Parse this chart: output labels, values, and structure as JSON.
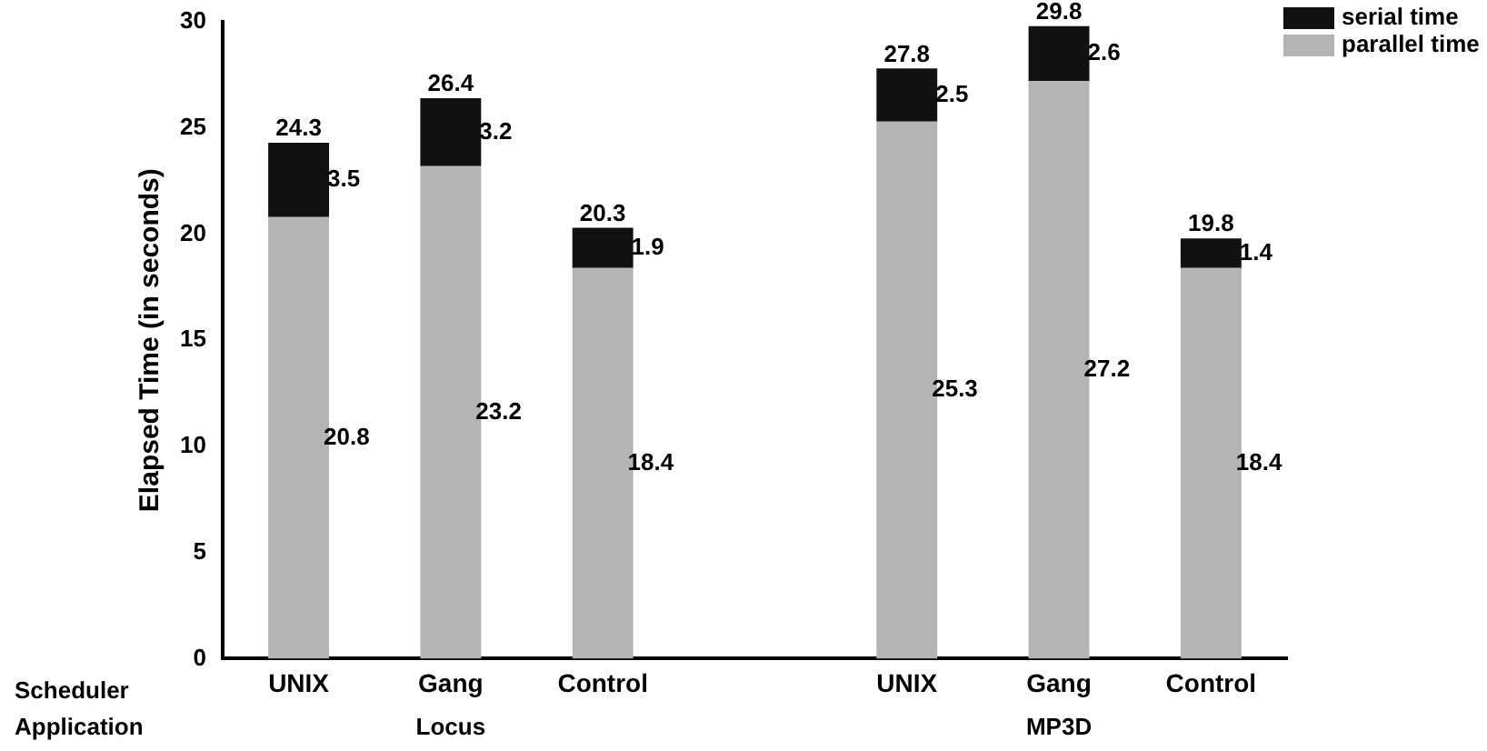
{
  "chart_data": {
    "type": "bar",
    "ylabel": "Elapsed Time (in seconds)",
    "categories": [
      "UNIX",
      "Gang",
      "Control",
      null,
      "UNIX",
      "Gang",
      "Control"
    ],
    "series": [
      {
        "name": "parallel time",
        "color": "#b4b4b4",
        "values": [
          20.8,
          23.2,
          18.4,
          null,
          25.3,
          27.2,
          18.4
        ]
      },
      {
        "name": "serial time",
        "color": "#111111",
        "values": [
          3.5,
          3.2,
          1.9,
          null,
          2.5,
          2.6,
          1.4
        ]
      }
    ],
    "stacked": true,
    "data_labels": true,
    "totals": [
      "24.3",
      "26.4",
      "20.3",
      null,
      "27.8",
      "29.8",
      "19.8"
    ],
    "annotations": [
      "Scheduler",
      "Application",
      "Locus",
      "MP3D"
    ],
    "ylim": [
      0,
      30
    ],
    "yticks": [
      0,
      5,
      10,
      15,
      20,
      25,
      30
    ],
    "grid": false,
    "legend": "top right"
  }
}
